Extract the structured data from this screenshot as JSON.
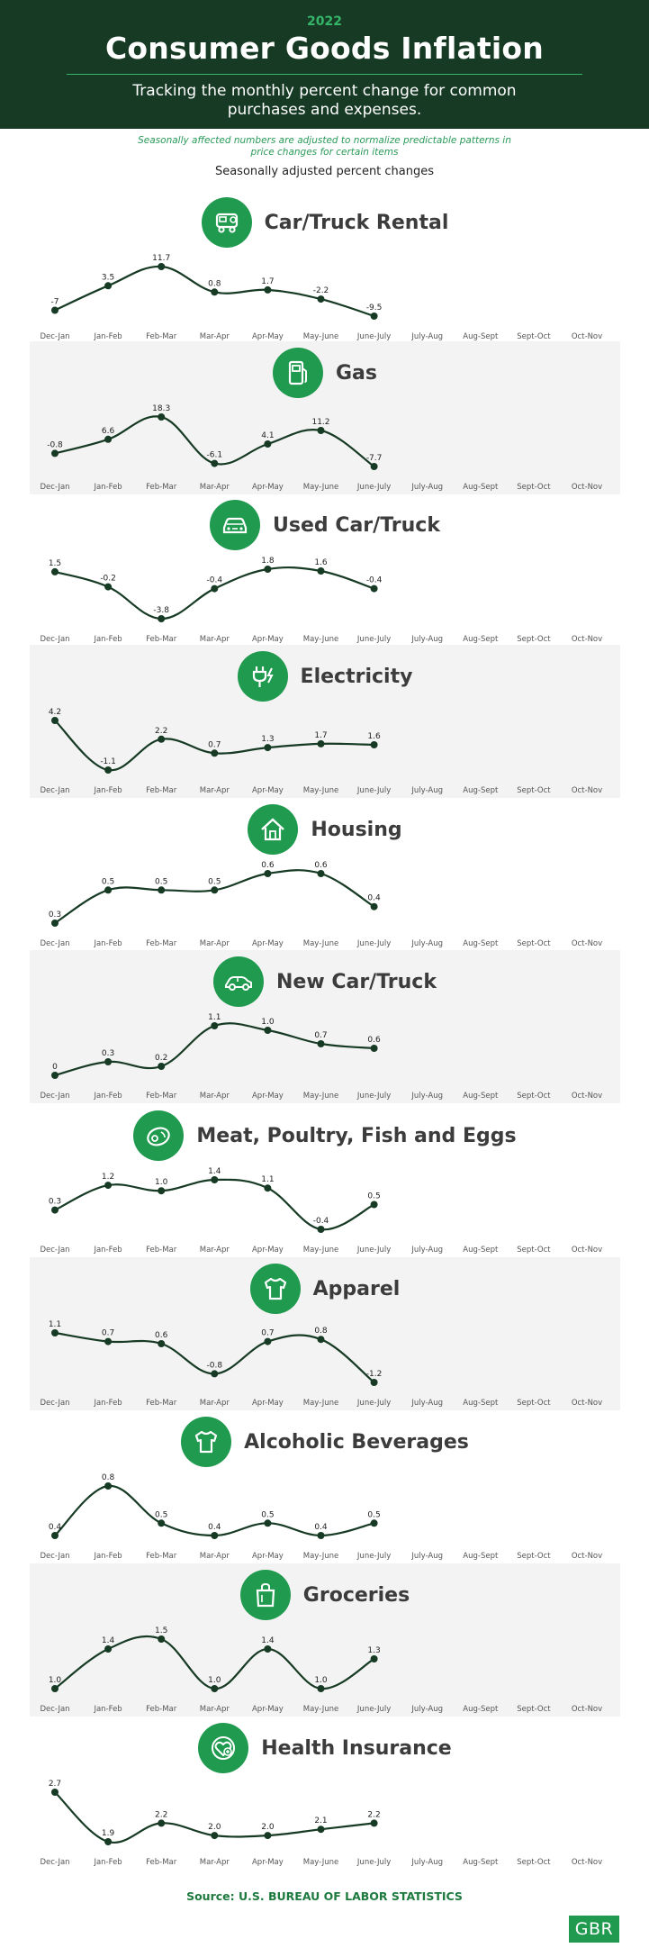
{
  "header": {
    "year": "2022",
    "title": "Consumer Goods Inflation",
    "subtitle": "Tracking the monthly percent change for common purchases and expenses."
  },
  "note": "Seasonally affected numbers are adjusted to normalize predictable patterns in price changes for certain items",
  "adjusted_label": "Seasonally adjusted percent changes",
  "colors": {
    "header_bg": "#163a24",
    "accent": "#1f9a4e",
    "line": "#163a24",
    "panel_shade": "#f3f3f3"
  },
  "footer": {
    "source": "Source: U.S. BUREAU OF LABOR STATISTICS",
    "logo": "GBR"
  },
  "chart_data": [
    {
      "type": "line",
      "title": "Car/Truck Rental",
      "icon": "car-rental-icon",
      "categories": [
        "Dec-Jan",
        "Jan-Feb",
        "Feb-Mar",
        "Mar-Apr",
        "Apr-May",
        "May-June",
        "June-July",
        "July-Aug",
        "Aug-Sept",
        "Sept-Oct",
        "Oct-Nov"
      ],
      "values": [
        -7,
        3.5,
        11.7,
        0.8,
        1.7,
        -2.2,
        -9.5
      ],
      "labels": [
        "-7",
        "3.5",
        "11.7",
        "0.8",
        "1.7",
        "-2.2",
        "-9.5"
      ]
    },
    {
      "type": "line",
      "title": "Gas",
      "icon": "gas-pump-icon",
      "categories": [
        "Dec-Jan",
        "Jan-Feb",
        "Feb-Mar",
        "Mar-Apr",
        "Apr-May",
        "May-June",
        "June-July",
        "July-Aug",
        "Aug-Sept",
        "Sept-Oct",
        "Oct-Nov"
      ],
      "values": [
        -0.8,
        6.6,
        18.3,
        -6.1,
        4.1,
        11.2,
        -7.7
      ],
      "labels": [
        "-0.8",
        "6.6",
        "18.3",
        "-6.1",
        "4.1",
        "11.2",
        "-7.7"
      ]
    },
    {
      "type": "line",
      "title": "Used Car/Truck",
      "icon": "used-car-icon",
      "categories": [
        "Dec-Jan",
        "Jan-Feb",
        "Feb-Mar",
        "Mar-Apr",
        "Apr-May",
        "May-June",
        "June-July",
        "July-Aug",
        "Aug-Sept",
        "Sept-Oct",
        "Oct-Nov"
      ],
      "values": [
        1.5,
        -0.2,
        -3.8,
        -0.4,
        1.8,
        1.6,
        -0.4
      ],
      "labels": [
        "1.5",
        "-0.2",
        "-3.8",
        "-0.4",
        "1.8",
        "1.6",
        "-0.4"
      ]
    },
    {
      "type": "line",
      "title": "Electricity",
      "icon": "plug-icon",
      "categories": [
        "Dec-Jan",
        "Jan-Feb",
        "Feb-Mar",
        "Mar-Apr",
        "Apr-May",
        "May-June",
        "June-July",
        "July-Aug",
        "Aug-Sept",
        "Sept-Oct",
        "Oct-Nov"
      ],
      "values": [
        4.2,
        -1.1,
        2.2,
        0.7,
        1.3,
        1.7,
        1.6
      ],
      "labels": [
        "4.2",
        "-1.1",
        "2.2",
        "0.7",
        "1.3",
        "1.7",
        "1.6"
      ]
    },
    {
      "type": "line",
      "title": "Housing",
      "icon": "house-icon",
      "categories": [
        "Dec-Jan",
        "Jan-Feb",
        "Feb-Mar",
        "Mar-Apr",
        "Apr-May",
        "May-June",
        "June-July",
        "July-Aug",
        "Aug-Sept",
        "Sept-Oct",
        "Oct-Nov"
      ],
      "values": [
        0.3,
        0.5,
        0.5,
        0.5,
        0.6,
        0.6,
        0.4
      ],
      "labels": [
        "0.3",
        "0.5",
        "0.5",
        "0.5",
        "0.6",
        "0.6",
        "0.4"
      ]
    },
    {
      "type": "line",
      "title": "New Car/Truck",
      "icon": "new-car-icon",
      "categories": [
        "Dec-Jan",
        "Jan-Feb",
        "Feb-Mar",
        "Mar-Apr",
        "Apr-May",
        "May-June",
        "June-July",
        "July-Aug",
        "Aug-Sept",
        "Sept-Oct",
        "Oct-Nov"
      ],
      "values": [
        0,
        0.3,
        0.2,
        1.1,
        1.0,
        0.7,
        0.6
      ],
      "labels": [
        "0",
        "0.3",
        "0.2",
        "1.1",
        "1.0",
        "0.7",
        "0.6"
      ]
    },
    {
      "type": "line",
      "title": "Meat, Poultry, Fish and Eggs",
      "icon": "steak-icon",
      "categories": [
        "Dec-Jan",
        "Jan-Feb",
        "Feb-Mar",
        "Mar-Apr",
        "Apr-May",
        "May-June",
        "June-July",
        "July-Aug",
        "Aug-Sept",
        "Sept-Oct",
        "Oct-Nov"
      ],
      "values": [
        0.3,
        1.2,
        1.0,
        1.4,
        1.1,
        -0.4,
        0.5
      ],
      "labels": [
        "0.3",
        "1.2",
        "1.0",
        "1.4",
        "1.1",
        "-0.4",
        "0.5"
      ]
    },
    {
      "type": "line",
      "title": "Apparel",
      "icon": "shirt-icon",
      "categories": [
        "Dec-Jan",
        "Jan-Feb",
        "Feb-Mar",
        "Mar-Apr",
        "Apr-May",
        "May-June",
        "June-July",
        "July-Aug",
        "Aug-Sept",
        "Sept-Oct",
        "Oct-Nov"
      ],
      "values": [
        1.1,
        0.7,
        0.6,
        -0.8,
        0.7,
        0.8,
        -1.2
      ],
      "labels": [
        "1.1",
        "0.7",
        "0.6",
        "-0.8",
        "0.7",
        "0.8",
        "-1.2"
      ]
    },
    {
      "type": "line",
      "title": "Alcoholic Beverages",
      "icon": "shirt-icon",
      "categories": [
        "Dec-Jan",
        "Jan-Feb",
        "Feb-Mar",
        "Mar-Apr",
        "Apr-May",
        "May-June",
        "June-July",
        "July-Aug",
        "Aug-Sept",
        "Sept-Oct",
        "Oct-Nov"
      ],
      "values": [
        0.4,
        0.8,
        0.5,
        0.4,
        0.5,
        0.4,
        0.5
      ],
      "labels": [
        "0.4",
        "0.8",
        "0.5",
        "0.4",
        "0.5",
        "0.4",
        "0.5"
      ]
    },
    {
      "type": "line",
      "title": "Groceries",
      "icon": "grocery-bag-icon",
      "categories": [
        "Dec-Jan",
        "Jan-Feb",
        "Feb-Mar",
        "Mar-Apr",
        "Apr-May",
        "May-June",
        "June-July",
        "July-Aug",
        "Aug-Sept",
        "Sept-Oct",
        "Oct-Nov"
      ],
      "values": [
        1.0,
        1.4,
        1.5,
        1.0,
        1.4,
        1.0,
        1.3
      ],
      "labels": [
        "1.0",
        "1.4",
        "1.5",
        "1.0",
        "1.4",
        "1.0",
        "1.3"
      ]
    },
    {
      "type": "line",
      "title": "Health Insurance",
      "icon": "health-icon",
      "categories": [
        "Dec-Jan",
        "Jan-Feb",
        "Feb-Mar",
        "Mar-Apr",
        "Apr-May",
        "May-June",
        "June-July",
        "July-Aug",
        "Aug-Sept",
        "Sept-Oct",
        "Oct-Nov"
      ],
      "values": [
        2.7,
        1.9,
        2.2,
        2.0,
        2.0,
        2.1,
        2.2
      ],
      "labels": [
        "2.7",
        "1.9",
        "2.2",
        "2.0",
        "2.0",
        "2.1",
        "2.2"
      ]
    }
  ]
}
